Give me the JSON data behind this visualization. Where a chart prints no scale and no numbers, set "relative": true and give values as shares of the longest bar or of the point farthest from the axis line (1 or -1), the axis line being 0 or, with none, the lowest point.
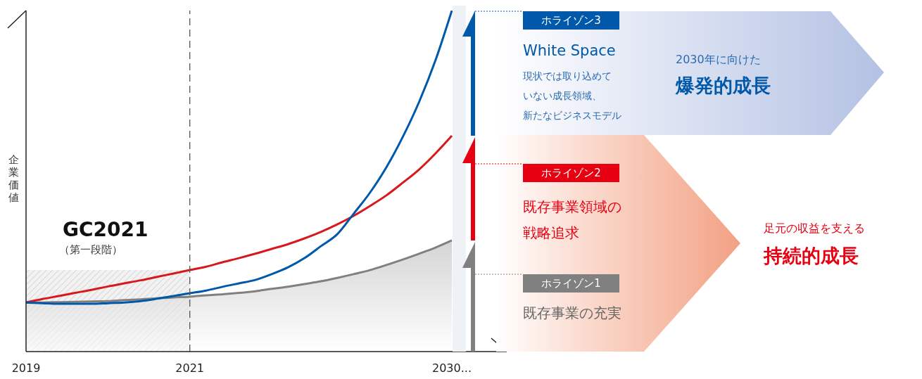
{
  "chart_data": {
    "type": "line",
    "relative": true,
    "ylabel": "企業価値",
    "categories": [
      "2019",
      null,
      null,
      null,
      null,
      null,
      null,
      null,
      null,
      null,
      "2021",
      null,
      null,
      null,
      null,
      null,
      null,
      null,
      null,
      null,
      null,
      null,
      null,
      null,
      null,
      null,
      "2030..."
    ],
    "series": [
      {
        "type": "area",
        "color": "#808080",
        "values": [
          0.144,
          0.144,
          0.145,
          0.146,
          0.147,
          0.148,
          0.151,
          0.153,
          0.156,
          0.159,
          0.161,
          0.165,
          0.168,
          0.172,
          0.177,
          0.184,
          0.19,
          0.198,
          0.206,
          0.216,
          0.227,
          0.239,
          0.254,
          0.27,
          0.287,
          0.305,
          0.326
        ]
      },
      {
        "color": "#d7191e",
        "values": [
          0.144,
          0.154,
          0.163,
          0.172,
          0.181,
          0.191,
          0.2,
          0.209,
          0.219,
          0.229,
          0.239,
          0.249,
          0.262,
          0.274,
          0.287,
          0.301,
          0.315,
          0.332,
          0.351,
          0.373,
          0.398,
          0.427,
          0.458,
          0.495,
          0.534,
          0.581,
          0.633
        ]
      },
      {
        "color": "#0058aa",
        "values": [
          0.144,
          0.142,
          0.14,
          0.14,
          0.14,
          0.142,
          0.144,
          0.148,
          0.155,
          0.163,
          0.171,
          0.179,
          0.19,
          0.2,
          0.21,
          0.227,
          0.247,
          0.274,
          0.309,
          0.344,
          0.404,
          0.466,
          0.54,
          0.629,
          0.732,
          0.854,
          1
        ]
      }
    ],
    "bands": [
      {
        "axis": "x",
        "from": "2019",
        "to": "2021",
        "label": "GC2021"
      }
    ],
    "ref_lines": [
      {
        "axis": "x",
        "value": "2021",
        "line_style": "dashed",
        "color": "#555555"
      }
    ],
    "annotations": [
      "（第一段階）",
      "ホライゾン3",
      "White Space",
      "現状では取り込めていない成長領域、新たなビジネスモデル",
      "2030年に向けた",
      "爆発的成長",
      "ホライゾン2",
      "既存事業領域の戦略追求",
      "ホライゾン1",
      "既存事業の充実",
      "足元の収益を支える",
      "持続的成長"
    ]
  }
}
